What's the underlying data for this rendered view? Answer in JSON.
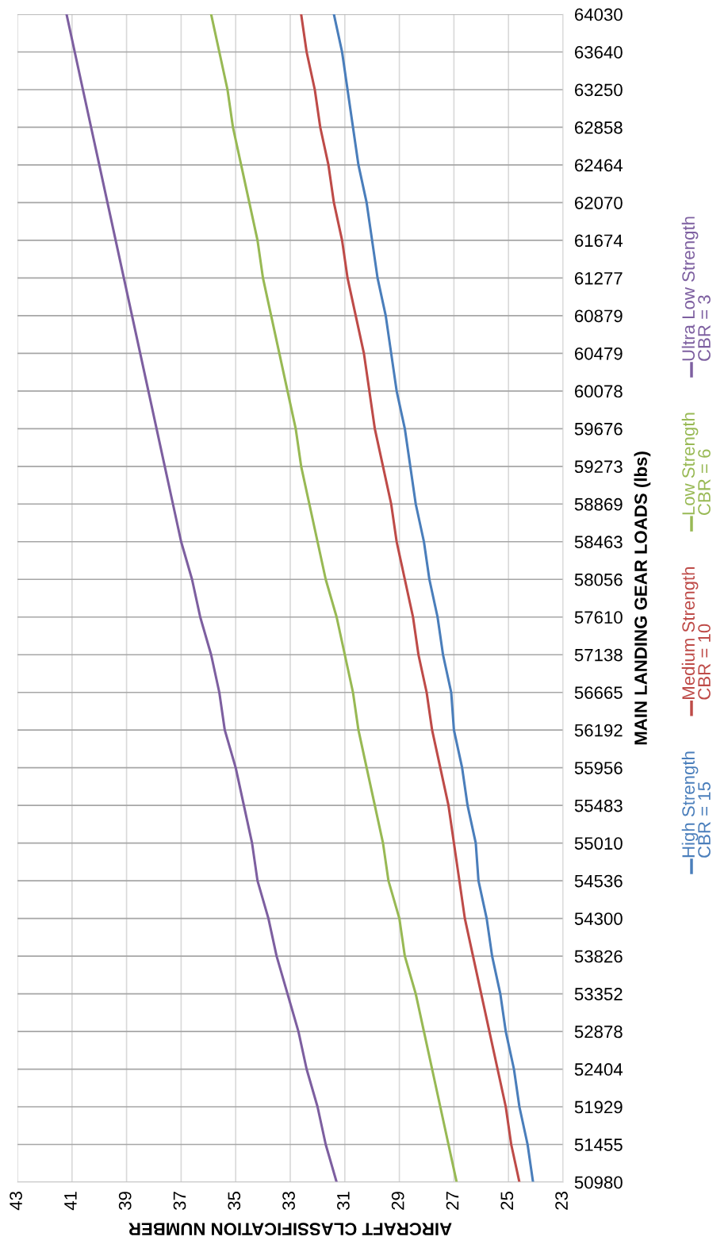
{
  "chart_data": {
    "type": "line",
    "orientation": "horizontal",
    "xlabel": "AIRCRAFT CLASSIFICATION NUMBER",
    "ylabel": "MAIN LANDING GEAR LOADS (lbs)",
    "categories": [
      "64030",
      "63640",
      "63250",
      "62858",
      "62464",
      "62070",
      "61674",
      "61277",
      "60879",
      "60479",
      "60078",
      "59676",
      "59273",
      "58869",
      "58463",
      "58056",
      "57610",
      "57138",
      "56665",
      "56192",
      "55956",
      "55483",
      "55010",
      "54536",
      "54300",
      "53826",
      "53352",
      "52878",
      "52404",
      "51929",
      "51455",
      "50980"
    ],
    "series": [
      {
        "name": "High Strength\nCBR = 15",
        "color": "#4a7ebb",
        "values": [
          31.4,
          31.1,
          30.9,
          30.7,
          30.5,
          30.2,
          30.0,
          29.8,
          29.5,
          29.3,
          29.1,
          28.8,
          28.6,
          28.4,
          28.1,
          27.9,
          27.6,
          27.4,
          27.1,
          27.0,
          26.7,
          26.5,
          26.2,
          26.1,
          25.8,
          25.6,
          25.3,
          25.1,
          24.8,
          24.6,
          24.3,
          24.1
        ]
      },
      {
        "name": "Medium Strength\nCBR = 10",
        "color": "#be4b48",
        "values": [
          32.6,
          32.4,
          32.1,
          31.9,
          31.6,
          31.4,
          31.1,
          30.9,
          30.6,
          30.3,
          30.1,
          29.9,
          29.6,
          29.3,
          29.1,
          28.8,
          28.5,
          28.3,
          28.0,
          27.8,
          27.5,
          27.2,
          27.0,
          26.8,
          26.6,
          26.3,
          26.0,
          25.7,
          25.4,
          25.1,
          24.9,
          24.6
        ]
      },
      {
        "name": "Low Strength\nCBR = 6",
        "color": "#98b954",
        "values": [
          35.9,
          35.6,
          35.3,
          35.1,
          34.8,
          34.5,
          34.2,
          34.0,
          33.7,
          33.4,
          33.1,
          32.8,
          32.6,
          32.3,
          32.0,
          31.7,
          31.3,
          31.0,
          30.7,
          30.5,
          30.2,
          29.9,
          29.6,
          29.4,
          29.0,
          28.8,
          28.4,
          28.1,
          27.8,
          27.5,
          27.2,
          26.9
        ]
      },
      {
        "name": "Ultra Low Strength\nCBR = 3",
        "color": "#7d5fa0",
        "values": [
          41.2,
          40.9,
          40.6,
          40.3,
          40.0,
          39.7,
          39.4,
          39.1,
          38.8,
          38.5,
          38.2,
          37.9,
          37.6,
          37.3,
          37.0,
          36.6,
          36.3,
          35.9,
          35.6,
          35.4,
          35.0,
          34.7,
          34.4,
          34.2,
          33.8,
          33.5,
          33.1,
          32.7,
          32.4,
          32.0,
          31.7,
          31.3
        ]
      }
    ],
    "xlim": [
      43,
      23
    ],
    "xticks": [
      43,
      41,
      39,
      37,
      35,
      33,
      31,
      29,
      27,
      25,
      23
    ],
    "grid": true,
    "legend": "right",
    "marker": "none",
    "line_style": "solid"
  }
}
